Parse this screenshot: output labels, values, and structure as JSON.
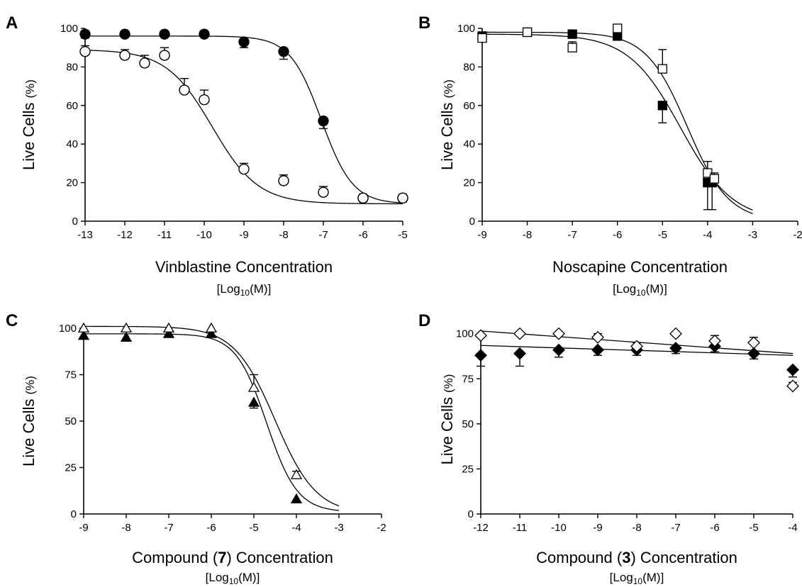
{
  "chart_data": [
    {
      "panel": "A",
      "type": "scatter",
      "xlabel": "Vinblastine Concentration",
      "unit": {
        "pre": "[Log",
        "sub": "10",
        "post": "(M)]"
      },
      "ylabel": {
        "main": "Live Cells ",
        "unit": "(%)"
      },
      "xlim": [
        -13,
        -5
      ],
      "ylim": [
        0,
        100
      ],
      "xticks": [
        -13,
        -12,
        -11,
        -10,
        -9,
        -8,
        -7,
        -6,
        -5
      ],
      "yticks": [
        0,
        20,
        40,
        60,
        80,
        100
      ],
      "series": [
        {
          "marker": "circle-filled",
          "x": [
            -13,
            -12,
            -11,
            -10,
            -9,
            -8,
            -7,
            -6,
            -5
          ],
          "y": [
            97,
            97,
            97,
            97,
            93,
            88,
            52,
            12,
            12
          ],
          "err": [
            2,
            1,
            1,
            1,
            3,
            4,
            4,
            2,
            2
          ],
          "fit": {
            "top": 96,
            "bottom": 9,
            "logEC50": -7.05,
            "hill": 1.1
          }
        },
        {
          "marker": "circle-open",
          "x": [
            -13,
            -12,
            -11.5,
            -11,
            -10.5,
            -10,
            -9,
            -8,
            -7,
            -6,
            -5
          ],
          "y": [
            88,
            86,
            82,
            86,
            68,
            63,
            27,
            21,
            15,
            12,
            12
          ],
          "err": [
            3,
            3,
            4,
            4,
            6,
            5,
            3,
            3,
            3,
            2,
            2
          ],
          "fit": {
            "top": 89,
            "bottom": 9,
            "logEC50": -9.8,
            "hill": 0.75
          }
        }
      ]
    },
    {
      "panel": "B",
      "type": "scatter",
      "xlabel": "Noscapine Concentration",
      "unit": {
        "pre": "[Log",
        "sub": "10",
        "post": "(M)]"
      },
      "ylabel": {
        "main": "Live Cells ",
        "unit": "(%)"
      },
      "xlim": [
        -9,
        -2
      ],
      "ylim": [
        0,
        100
      ],
      "xticks": [
        -9,
        -8,
        -7,
        -6,
        -5,
        -4,
        -3,
        -2
      ],
      "yticks": [
        0,
        20,
        40,
        60,
        80,
        100
      ],
      "series": [
        {
          "marker": "square-filled",
          "x": [
            -9,
            -8,
            -7,
            -6,
            -5,
            -4,
            -3.9
          ],
          "y": [
            96,
            98,
            97,
            96,
            60,
            20,
            20
          ],
          "err": [
            2,
            1,
            2,
            2,
            9,
            14,
            14
          ],
          "fit": {
            "top": 97,
            "bottom": 0,
            "logEC50": -4.6,
            "hill": 0.75
          }
        },
        {
          "marker": "square-open",
          "x": [
            -9,
            -8,
            -7,
            -6,
            -5,
            -4,
            -3.85
          ],
          "y": [
            95,
            98,
            90,
            100,
            79,
            25,
            22
          ],
          "err": [
            2,
            1,
            3,
            1,
            10,
            6,
            3
          ],
          "fit": {
            "top": 98,
            "bottom": 0,
            "logEC50": -4.45,
            "hill": 0.95
          }
        }
      ]
    },
    {
      "panel": "C",
      "type": "scatter",
      "xlabel": {
        "pre": "Compound (",
        "bold": "7",
        "post": ") Concentration"
      },
      "unit": {
        "pre": "[Log",
        "sub": "10",
        "post": "(M)]"
      },
      "ylabel": {
        "main": "Live Cells ",
        "unit": "(%)"
      },
      "xlim": [
        -9,
        -2
      ],
      "ylim": [
        0,
        100
      ],
      "xticks": [
        -9,
        -8,
        -7,
        -6,
        -5,
        -4,
        -3,
        -2
      ],
      "yticks": [
        0,
        25,
        50,
        75,
        100
      ],
      "series": [
        {
          "marker": "triangle-filled",
          "x": [
            -9,
            -8,
            -7,
            -6,
            -5,
            -4
          ],
          "y": [
            96,
            95,
            97,
            97,
            60,
            8
          ],
          "err": [
            1,
            1,
            1,
            1,
            3,
            1
          ],
          "fit": {
            "top": 97,
            "bottom": 1,
            "logEC50": -4.7,
            "hill": 1.2
          }
        },
        {
          "marker": "triangle-open",
          "x": [
            -9,
            -8,
            -7,
            -6,
            -5,
            -4
          ],
          "y": [
            100,
            100,
            100,
            100,
            68,
            21
          ],
          "err": [
            1,
            1,
            1,
            1,
            7,
            2
          ],
          "fit": {
            "top": 101,
            "bottom": 0,
            "logEC50": -4.5,
            "hill": 0.9
          }
        }
      ]
    },
    {
      "panel": "D",
      "type": "scatter",
      "xlabel": {
        "pre": "Compound (",
        "bold": "3",
        "post": ") Concentration"
      },
      "unit": {
        "pre": "[Log",
        "sub": "10",
        "post": "(M)]"
      },
      "ylabel": {
        "main": "Live Cells ",
        "unit": "(%)"
      },
      "xlim": [
        -12,
        -4
      ],
      "ylim": [
        0,
        105
      ],
      "xticks": [
        -12,
        -11,
        -10,
        -9,
        -8,
        -7,
        -6,
        -5,
        -4
      ],
      "yticks": [
        0,
        25,
        50,
        75,
        100
      ],
      "series": [
        {
          "marker": "diamond-filled",
          "x": [
            -12,
            -11,
            -10,
            -9,
            -8,
            -7,
            -6,
            -5,
            -4
          ],
          "y": [
            88,
            89,
            91,
            91,
            91,
            92,
            93,
            89,
            80
          ],
          "err": [
            6,
            7,
            4,
            3,
            3,
            3,
            3,
            3,
            4
          ],
          "fit": {
            "line": [
              93.5,
              88
            ]
          }
        },
        {
          "marker": "diamond-open",
          "x": [
            -12,
            -11,
            -10,
            -9,
            -8,
            -7,
            -6,
            -5,
            -4
          ],
          "y": [
            99,
            100,
            100,
            98,
            93,
            100,
            96,
            95,
            71
          ],
          "err": [
            1,
            1,
            1,
            2,
            2,
            1,
            3,
            3,
            2
          ],
          "fit": {
            "line": [
              101.5,
              89
            ]
          }
        }
      ]
    }
  ]
}
